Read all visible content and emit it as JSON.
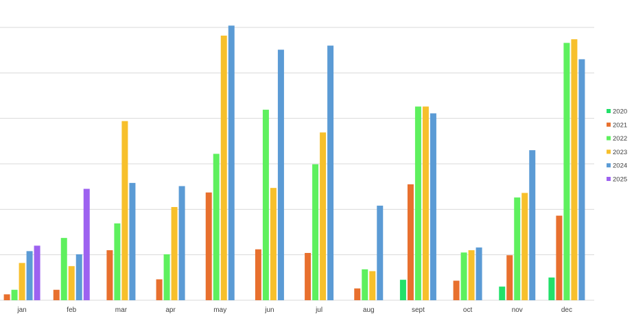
{
  "chart_data": {
    "type": "bar",
    "title": "",
    "xlabel": "",
    "ylabel": "",
    "categories": [
      "jan",
      "feb",
      "mar",
      "apr",
      "may",
      "jun",
      "jul",
      "aug",
      "sept",
      "oct",
      "nov",
      "dec"
    ],
    "ylim": [
      0,
      60
    ],
    "grid": true,
    "legend_position": "right",
    "series": [
      {
        "name": "2020",
        "color": "#22e06a",
        "values": [
          0,
          0,
          0,
          0,
          0,
          0,
          0,
          0,
          4.5,
          0,
          3,
          5
        ]
      },
      {
        "name": "2021",
        "color": "#e8702e",
        "values": [
          1.3,
          2.3,
          11,
          4.6,
          23.7,
          11.2,
          10.4,
          2.6,
          25.5,
          4.3,
          9.9,
          18.6
        ]
      },
      {
        "name": "2022",
        "color": "#5ef05e",
        "values": [
          2.3,
          13.7,
          16.9,
          10.1,
          32.2,
          41.9,
          29.9,
          6.8,
          42.6,
          10.5,
          22.6,
          56.6
        ]
      },
      {
        "name": "2023",
        "color": "#f7c02c",
        "values": [
          8.2,
          7.5,
          39.4,
          20.5,
          58.2,
          24.7,
          36.9,
          6.4,
          42.6,
          11,
          23.6,
          57.4
        ]
      },
      {
        "name": "2024",
        "color": "#5b9bd5",
        "values": [
          10.8,
          10.1,
          25.8,
          25.1,
          60.4,
          55.1,
          56,
          20.8,
          41.1,
          11.6,
          33,
          53
        ]
      },
      {
        "name": "2025",
        "color": "#9d62f0",
        "values": [
          12,
          24.5,
          0,
          0,
          0,
          0,
          0,
          0,
          0,
          0,
          0,
          0
        ]
      }
    ]
  }
}
